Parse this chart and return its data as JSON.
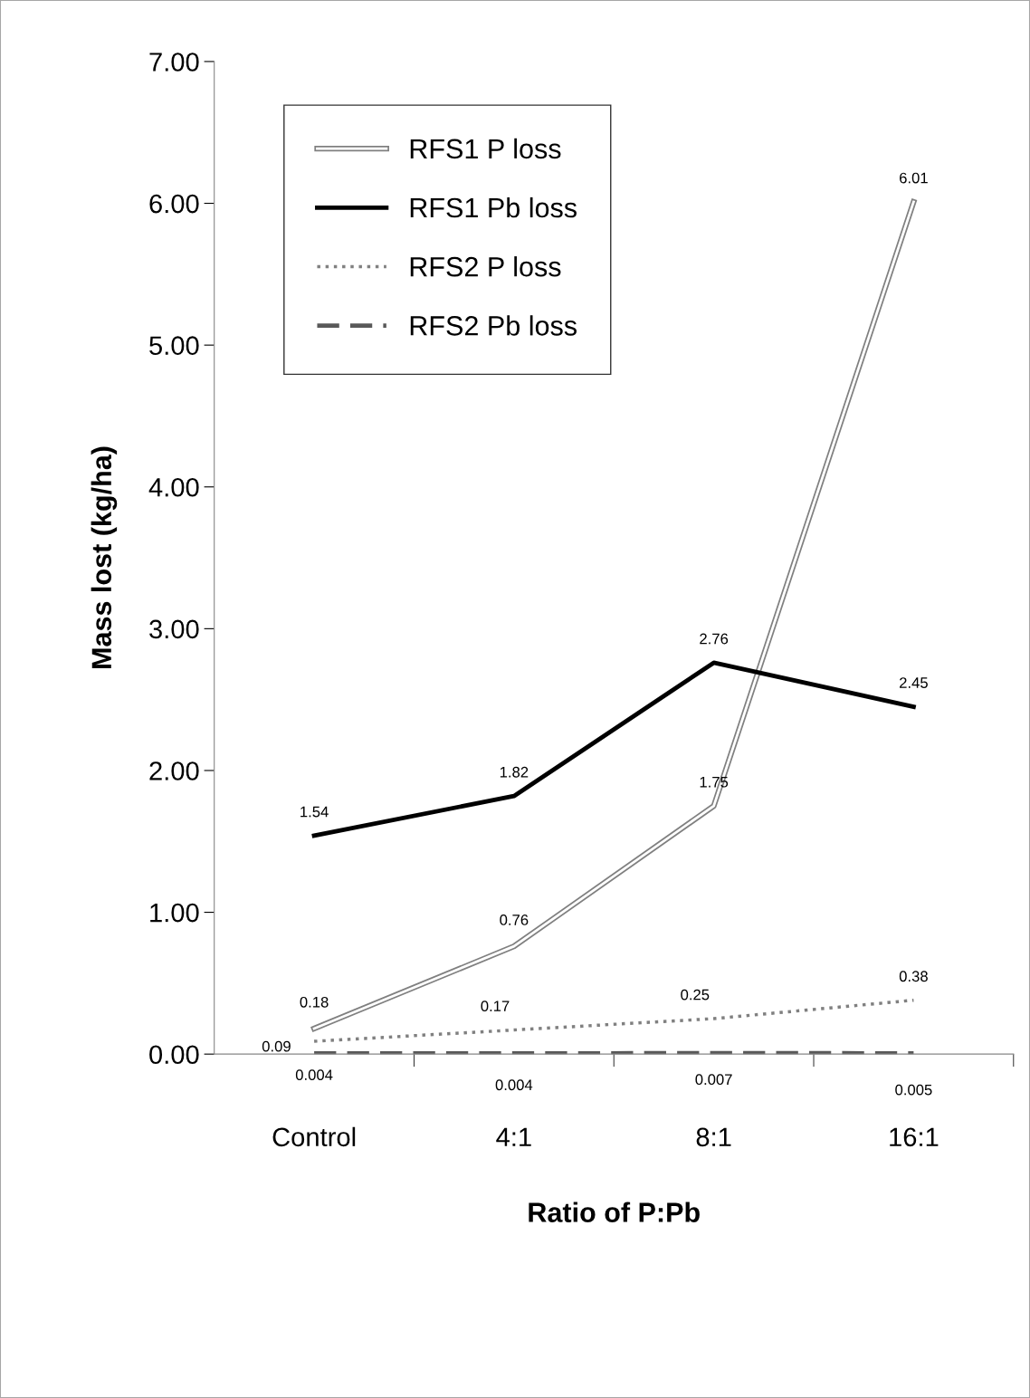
{
  "chart_data": {
    "type": "line",
    "xlabel": "Ratio of P:Pb",
    "ylabel": "Mass lost (kg/ha)",
    "categories": [
      "Control",
      "4:1",
      "8:1",
      "16:1"
    ],
    "series": [
      {
        "name": "RFS1 P loss",
        "color": "#808080",
        "line_style": "solid",
        "values": [
          0.18,
          0.76,
          1.75,
          6.01
        ]
      },
      {
        "name": "RFS1 Pb loss",
        "color": "#000000",
        "line_style": "solid",
        "values": [
          1.54,
          1.82,
          2.76,
          2.45
        ]
      },
      {
        "name": "RFS2 P loss",
        "color": "#808080",
        "line_style": "dotted",
        "values": [
          0.09,
          0.17,
          0.25,
          0.38
        ]
      },
      {
        "name": "RFS2 Pb loss",
        "color": "#595959",
        "line_style": "dashed",
        "values": [
          0.004,
          0.004,
          0.007,
          0.005
        ]
      }
    ],
    "ylim": [
      0,
      7
    ],
    "yticks": [
      {
        "value": 0,
        "label": "0.00"
      },
      {
        "value": 1,
        "label": "1.00"
      },
      {
        "value": 2,
        "label": "2.00"
      },
      {
        "value": 3,
        "label": "3.00"
      },
      {
        "value": 4,
        "label": "4.00"
      },
      {
        "value": 5,
        "label": "5.00"
      },
      {
        "value": 6,
        "label": "6.00"
      },
      {
        "value": 7,
        "label": "7.00"
      }
    ],
    "grid": false,
    "legend": "top left",
    "marker": "none",
    "data_labels": true
  }
}
